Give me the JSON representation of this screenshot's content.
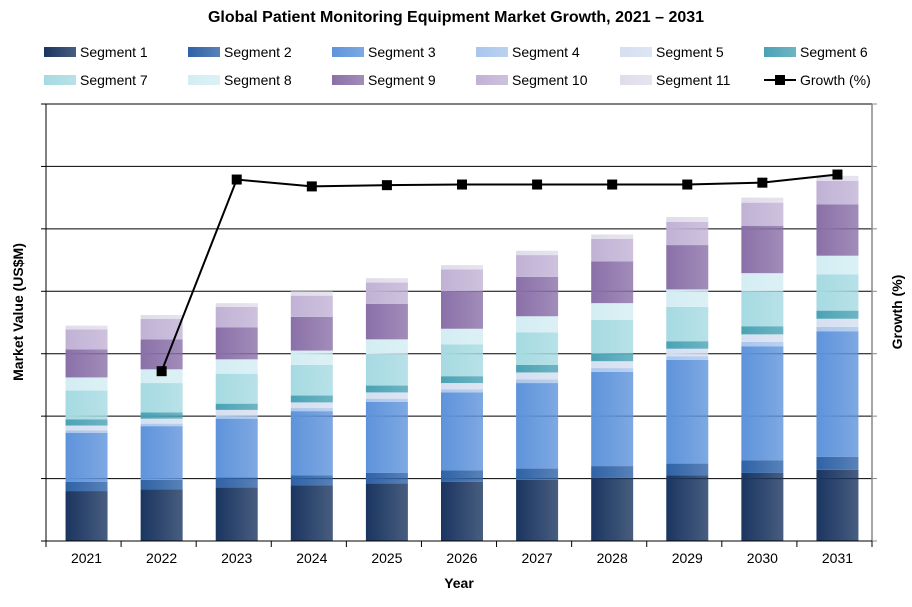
{
  "chart_data": {
    "type": "bar",
    "stacked": true,
    "title": "Global Patient Monitoring Equipment Market Growth, 2021 – 2031",
    "xlabel": "Year",
    "ylabel": "Market Value (US$M)",
    "y2label": "Growth (%)",
    "ylim": [
      0,
      7
    ],
    "grid": true,
    "legend": "top",
    "categories": [
      "2021",
      "2022",
      "2023",
      "2024",
      "2025",
      "2026",
      "2027",
      "2028",
      "2029",
      "2030",
      "2031"
    ],
    "series": [
      {
        "name": "Segment 1",
        "color": "#1a3560",
        "values": [
          0.8,
          0.83,
          0.86,
          0.89,
          0.92,
          0.95,
          0.98,
          1.01,
          1.05,
          1.09,
          1.14
        ]
      },
      {
        "name": "Segment 2",
        "color": "#2f62a6",
        "values": [
          0.15,
          0.15,
          0.16,
          0.16,
          0.17,
          0.18,
          0.18,
          0.19,
          0.19,
          0.2,
          0.21
        ]
      },
      {
        "name": "Segment 3",
        "color": "#5e93db",
        "values": [
          0.78,
          0.86,
          0.94,
          1.03,
          1.14,
          1.25,
          1.37,
          1.51,
          1.66,
          1.83,
          2.01
        ]
      },
      {
        "name": "Segment 4",
        "color": "#a9c6ec",
        "values": [
          0.04,
          0.04,
          0.05,
          0.05,
          0.05,
          0.05,
          0.06,
          0.06,
          0.06,
          0.07,
          0.07
        ]
      },
      {
        "name": "Segment 5",
        "color": "#d5dff0",
        "values": [
          0.08,
          0.08,
          0.09,
          0.09,
          0.1,
          0.1,
          0.11,
          0.11,
          0.12,
          0.12,
          0.13
        ]
      },
      {
        "name": "Segment 6",
        "color": "#4aa2b4",
        "values": [
          0.1,
          0.1,
          0.1,
          0.11,
          0.11,
          0.11,
          0.12,
          0.12,
          0.12,
          0.13,
          0.13
        ]
      },
      {
        "name": "Segment 7",
        "color": "#a6dae2",
        "values": [
          0.46,
          0.47,
          0.48,
          0.49,
          0.5,
          0.51,
          0.52,
          0.54,
          0.55,
          0.56,
          0.58
        ]
      },
      {
        "name": "Segment 8",
        "color": "#d3edf3",
        "values": [
          0.21,
          0.22,
          0.23,
          0.23,
          0.24,
          0.25,
          0.26,
          0.27,
          0.28,
          0.29,
          0.3
        ]
      },
      {
        "name": "Segment 9",
        "color": "#8a70a8",
        "values": [
          0.45,
          0.48,
          0.51,
          0.54,
          0.57,
          0.6,
          0.63,
          0.67,
          0.71,
          0.76,
          0.82
        ]
      },
      {
        "name": "Segment 10",
        "color": "#c1b2d5",
        "values": [
          0.32,
          0.33,
          0.33,
          0.34,
          0.34,
          0.35,
          0.35,
          0.36,
          0.37,
          0.37,
          0.38
        ]
      },
      {
        "name": "Segment 11",
        "color": "#e1dcea",
        "values": [
          0.06,
          0.06,
          0.06,
          0.07,
          0.07,
          0.07,
          0.07,
          0.07,
          0.08,
          0.08,
          0.08
        ]
      }
    ],
    "line_series": {
      "name": "Growth (%)",
      "color": "#000000",
      "axis": "right",
      "values": [
        null,
        2.72,
        5.79,
        5.68,
        5.7,
        5.71,
        5.71,
        5.71,
        5.71,
        5.74,
        5.87
      ]
    }
  }
}
